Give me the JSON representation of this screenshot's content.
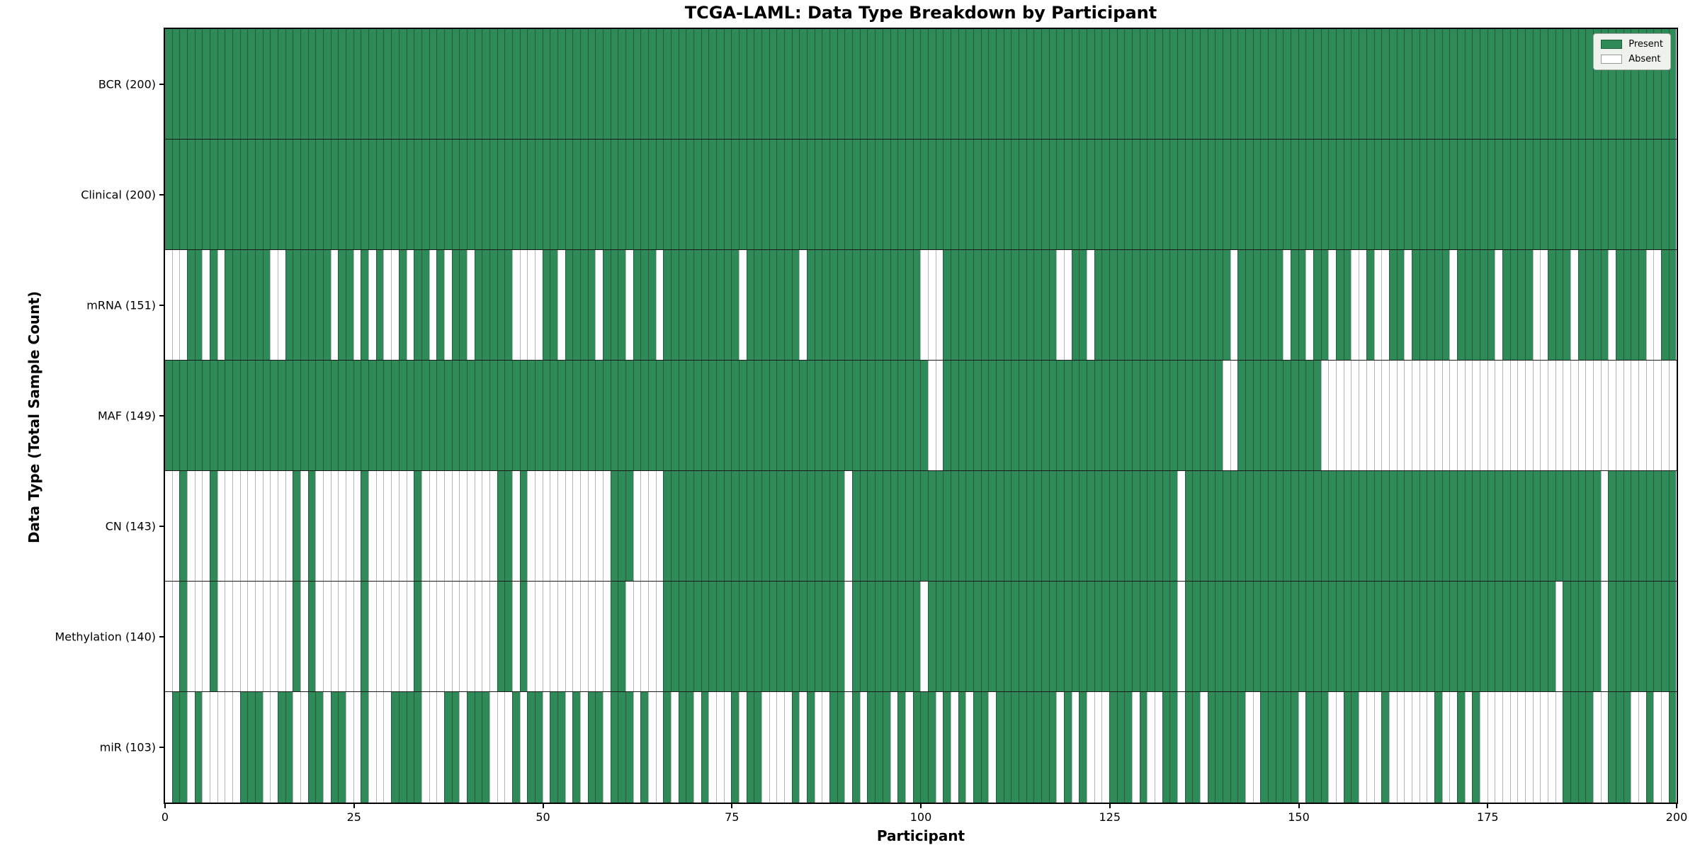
{
  "title": "TCGA-LAML: Data Type Breakdown by Participant",
  "x_axis": {
    "label": "Participant",
    "ticks": [
      0,
      25,
      50,
      75,
      100,
      125,
      150,
      175,
      200
    ],
    "range": [
      0,
      200
    ]
  },
  "y_axis": {
    "label": "Data Type (Total Sample Count)"
  },
  "legend": {
    "present_label": "Present",
    "absent_label": "Absent"
  },
  "colors": {
    "present": "#2e8b57",
    "absent": "#ffffff",
    "cell_edge": "rgba(40,40,40,0.5)",
    "row_separator": "#1a1a1a"
  },
  "chart_data": {
    "type": "heatmap",
    "x_label": "Participant",
    "n_participants": 200,
    "value_encoding": {
      "present": 1,
      "absent": 0
    },
    "rows": [
      {
        "label": "BCR (200)",
        "name": "BCR",
        "total_samples": 200,
        "absent": []
      },
      {
        "label": "Clinical (200)",
        "name": "Clinical",
        "total_samples": 200,
        "absent": []
      },
      {
        "label": "mRNA (151)",
        "name": "mRNA",
        "total_samples": 151,
        "absent": [
          0,
          1,
          2,
          5,
          7,
          14,
          15,
          22,
          25,
          27,
          29,
          30,
          32,
          35,
          37,
          40,
          46,
          47,
          48,
          49,
          52,
          57,
          61,
          65,
          76,
          84,
          100,
          101,
          102,
          118,
          119,
          122,
          141,
          148,
          151,
          154,
          157,
          158,
          160,
          161,
          164,
          170,
          176,
          181,
          182,
          186,
          191,
          196,
          197
        ]
      },
      {
        "label": "MAF (149)",
        "name": "MAF",
        "total_samples": 149,
        "absent": [
          101,
          102,
          140,
          141,
          153,
          154,
          155,
          156,
          157,
          158,
          159,
          160,
          161,
          162,
          163,
          164,
          165,
          166,
          167,
          168,
          169,
          170,
          171,
          172,
          173,
          174,
          175,
          176,
          177,
          178,
          179,
          180,
          181,
          182,
          183,
          184,
          185,
          186,
          187,
          188,
          189,
          190,
          191,
          192,
          193,
          194,
          195,
          196,
          197,
          198,
          199
        ]
      },
      {
        "label": "CN (143)",
        "name": "CN",
        "total_samples": 143,
        "absent": [
          0,
          1,
          3,
          4,
          5,
          7,
          8,
          9,
          10,
          11,
          12,
          13,
          14,
          15,
          16,
          18,
          20,
          21,
          22,
          23,
          24,
          25,
          27,
          28,
          29,
          30,
          31,
          32,
          34,
          35,
          36,
          37,
          38,
          39,
          40,
          41,
          42,
          43,
          46,
          48,
          49,
          50,
          51,
          52,
          53,
          54,
          55,
          56,
          57,
          58,
          62,
          63,
          64,
          65,
          90,
          134,
          190
        ]
      },
      {
        "label": "Methylation (140)",
        "name": "Methylation",
        "total_samples": 140,
        "absent": [
          0,
          1,
          3,
          4,
          5,
          7,
          8,
          9,
          10,
          11,
          12,
          13,
          14,
          15,
          16,
          18,
          20,
          21,
          22,
          23,
          24,
          25,
          27,
          28,
          29,
          30,
          31,
          32,
          34,
          35,
          36,
          37,
          38,
          39,
          40,
          41,
          42,
          43,
          46,
          48,
          49,
          50,
          51,
          52,
          53,
          54,
          55,
          56,
          57,
          58,
          61,
          62,
          63,
          64,
          65,
          90,
          100,
          134,
          184,
          190
        ]
      },
      {
        "label": "miR (103)",
        "name": "miR",
        "total_samples": 103,
        "absent": [
          0,
          3,
          5,
          6,
          7,
          8,
          9,
          13,
          14,
          17,
          18,
          21,
          24,
          25,
          27,
          28,
          29,
          34,
          35,
          36,
          39,
          43,
          44,
          45,
          47,
          50,
          53,
          55,
          58,
          62,
          64,
          65,
          67,
          70,
          72,
          73,
          74,
          76,
          79,
          80,
          81,
          82,
          84,
          86,
          87,
          90,
          92,
          96,
          98,
          102,
          104,
          106,
          109,
          118,
          120,
          122,
          123,
          124,
          128,
          130,
          131,
          134,
          137,
          143,
          144,
          150,
          154,
          155,
          158,
          159,
          160,
          162,
          163,
          164,
          165,
          166,
          167,
          169,
          170,
          172,
          174,
          175,
          176,
          177,
          178,
          179,
          180,
          181,
          182,
          183,
          184,
          189,
          190,
          194,
          195,
          197,
          198
        ]
      }
    ]
  }
}
